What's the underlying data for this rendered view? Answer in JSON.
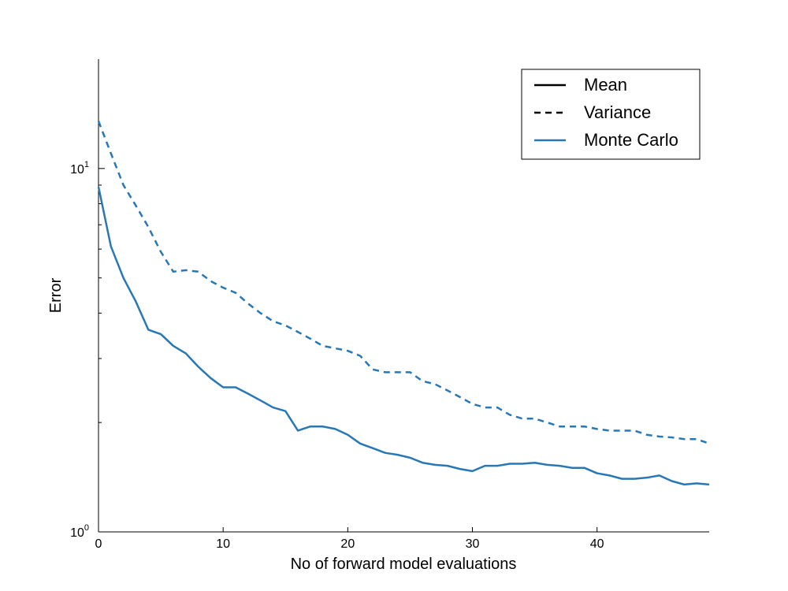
{
  "chart_data": {
    "type": "line",
    "xlabel": "No of forward model evaluations",
    "ylabel": "Error",
    "xlim": [
      0,
      49
    ],
    "ylim": [
      1,
      20
    ],
    "yscale": "log",
    "grid": false,
    "legend_position": "top-right",
    "x_ticks": [
      "0",
      "10",
      "20",
      "30",
      "40"
    ],
    "y_ticks": [
      {
        "base": "10",
        "exp": "0"
      },
      {
        "base": "10",
        "exp": "1"
      }
    ],
    "x": [
      0,
      1,
      2,
      3,
      4,
      5,
      6,
      7,
      8,
      9,
      10,
      11,
      12,
      13,
      14,
      15,
      16,
      17,
      18,
      19,
      20,
      21,
      22,
      23,
      24,
      25,
      26,
      27,
      28,
      29,
      30,
      31,
      32,
      33,
      34,
      35,
      36,
      37,
      38,
      39,
      40,
      41,
      42,
      43,
      44,
      45,
      46,
      47,
      48,
      49
    ],
    "legend": [
      {
        "label": "Mean",
        "style": "solid",
        "color": "#000000"
      },
      {
        "label": "Variance",
        "style": "dashed",
        "color": "#000000"
      },
      {
        "label": "Monte Carlo",
        "style": "solid",
        "color": "#2878b5"
      }
    ],
    "series": [
      {
        "group": "Monte Carlo",
        "stat": "Mean",
        "style": "solid",
        "color": "#2878b5",
        "values": [
          8.9,
          6.1,
          5.0,
          4.3,
          3.6,
          3.5,
          3.25,
          3.1,
          2.85,
          2.65,
          2.5,
          2.5,
          2.4,
          2.3,
          2.2,
          2.15,
          1.9,
          1.95,
          1.95,
          1.92,
          1.85,
          1.75,
          1.7,
          1.65,
          1.63,
          1.6,
          1.55,
          1.53,
          1.52,
          1.49,
          1.47,
          1.52,
          1.52,
          1.54,
          1.54,
          1.55,
          1.53,
          1.52,
          1.5,
          1.5,
          1.45,
          1.43,
          1.4,
          1.4,
          1.41,
          1.43,
          1.38,
          1.35,
          1.36,
          1.35
        ]
      },
      {
        "group": "Monte Carlo",
        "stat": "Variance",
        "style": "dashed",
        "color": "#2878b5",
        "values": [
          13.5,
          11.0,
          9.0,
          7.9,
          6.9,
          5.9,
          5.2,
          5.25,
          5.2,
          4.9,
          4.7,
          4.55,
          4.25,
          4.0,
          3.8,
          3.7,
          3.55,
          3.4,
          3.25,
          3.2,
          3.15,
          3.05,
          2.8,
          2.75,
          2.75,
          2.75,
          2.6,
          2.55,
          2.45,
          2.35,
          2.25,
          2.2,
          2.2,
          2.1,
          2.05,
          2.05,
          2.0,
          1.95,
          1.95,
          1.95,
          1.92,
          1.9,
          1.9,
          1.9,
          1.85,
          1.83,
          1.82,
          1.8,
          1.8,
          1.75
        ]
      }
    ]
  }
}
